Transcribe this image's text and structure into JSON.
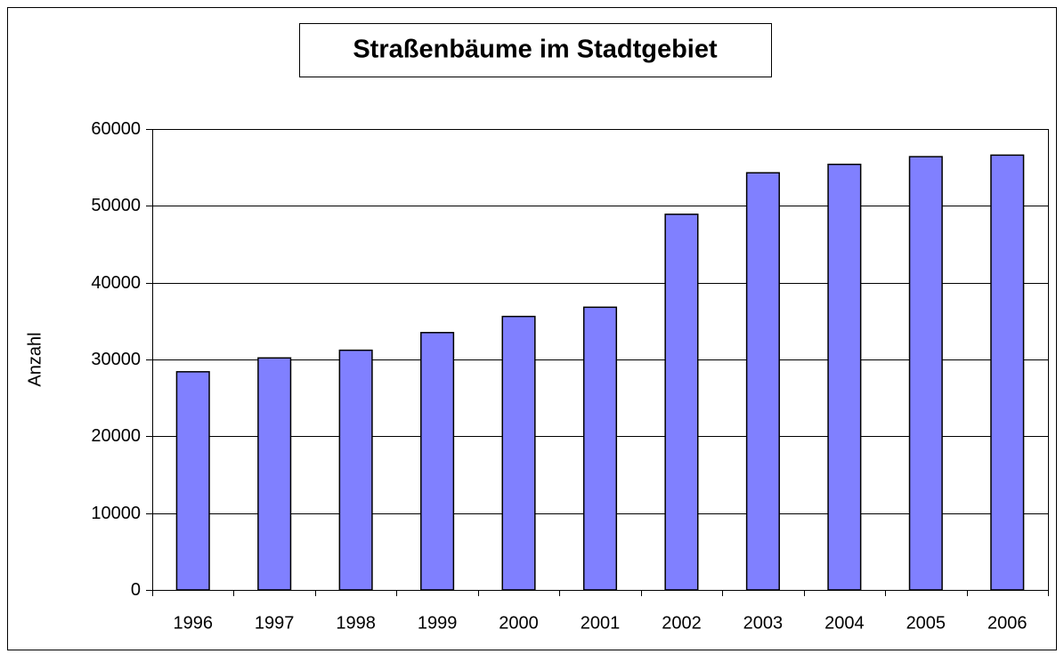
{
  "chart_data": {
    "type": "bar",
    "title": "Straßenbäume im Stadtgebiet",
    "y_label": "Anzahl",
    "categories": [
      "1996",
      "1997",
      "1998",
      "1999",
      "2000",
      "2001",
      "2002",
      "2003",
      "2004",
      "2005",
      "2006"
    ],
    "values": [
      28400,
      30200,
      31200,
      33500,
      35600,
      36800,
      48900,
      54300,
      55400,
      56400,
      56600
    ],
    "color": "#8080ff",
    "ylim": [
      0,
      60000
    ],
    "yticks": [
      0,
      10000,
      20000,
      30000,
      40000,
      50000,
      60000
    ],
    "grid": true
  }
}
